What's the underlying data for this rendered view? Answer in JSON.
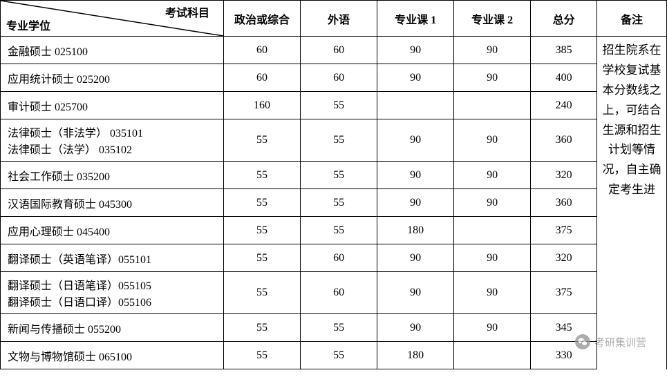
{
  "table": {
    "header": {
      "diagonal_top": "考试科目",
      "diagonal_bottom": "专业学位",
      "col1": "政治或综合",
      "col2": "外语",
      "col3": "专业课 1",
      "col4": "专业课 2",
      "col5": "总分",
      "col6": "备注"
    },
    "rows": [
      {
        "degree": "金融硕士  025100",
        "c1": "60",
        "c2": "60",
        "c3": "90",
        "c4": "90",
        "total": "385",
        "lines": 1
      },
      {
        "degree": "应用统计硕士  025200",
        "c1": "60",
        "c2": "60",
        "c3": "90",
        "c4": "90",
        "total": "400",
        "lines": 1
      },
      {
        "degree": "审计硕士  025700",
        "c1": "160",
        "c2": "55",
        "c3": "",
        "c4": "",
        "total": "240",
        "lines": 1
      },
      {
        "degree": "法律硕士（非法学）  035101\n法律硕士（法学）  035102",
        "c1": "55",
        "c2": "55",
        "c3": "90",
        "c4": "90",
        "total": "360",
        "lines": 2
      },
      {
        "degree": "社会工作硕士  035200",
        "c1": "55",
        "c2": "55",
        "c3": "90",
        "c4": "90",
        "total": "320",
        "lines": 1
      },
      {
        "degree": "汉语国际教育硕士  045300",
        "c1": "55",
        "c2": "55",
        "c3": "90",
        "c4": "90",
        "total": "360",
        "lines": 1
      },
      {
        "degree": "应用心理硕士  045400",
        "c1": "55",
        "c2": "55",
        "c3": "180",
        "c4": "",
        "total": "375",
        "lines": 1
      },
      {
        "degree": "翻译硕士（英语笔译）055101",
        "c1": "55",
        "c2": "60",
        "c3": "90",
        "c4": "90",
        "total": "320",
        "lines": 1
      },
      {
        "degree": "翻译硕士（日语笔译）055105\n翻译硕士（日语口译）055106",
        "c1": "55",
        "c2": "60",
        "c3": "90",
        "c4": "90",
        "total": "375",
        "lines": 2
      },
      {
        "degree": "新闻与传播硕士  055200",
        "c1": "55",
        "c2": "55",
        "c3": "90",
        "c4": "90",
        "total": "345",
        "lines": 1
      },
      {
        "degree": "文物与博物馆硕士  065100",
        "c1": "55",
        "c2": "55",
        "c3": "180",
        "c4": "",
        "total": "330",
        "lines": 1
      }
    ],
    "remark_text": "招生院系在学校复试基本分数线之上，可结合生源和招生计划等情况，自主确定考生进"
  },
  "watermark": {
    "text": "考研集训营",
    "icon_name": "wechat-icon"
  }
}
